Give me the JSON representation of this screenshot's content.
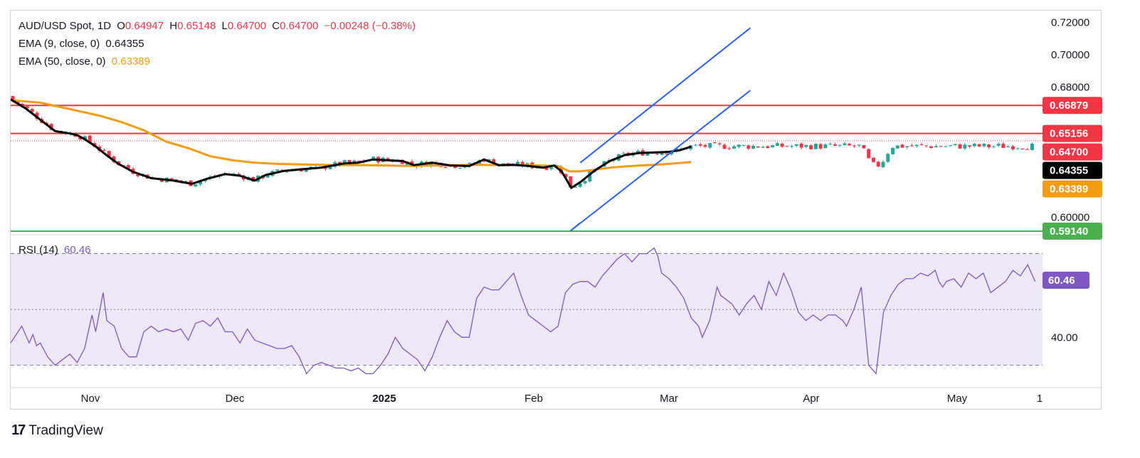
{
  "legend": {
    "symbol": "AUD/USD Spot, 1D",
    "open_label": "O",
    "open": "0.64947",
    "high_label": "H",
    "high": "0.65148",
    "low_label": "L",
    "low": "0.64700",
    "close_label": "C",
    "close": "0.64700",
    "change": "−0.00248 (−0.38%)",
    "ema9_label": "EMA (9, close, 0)",
    "ema9_value": "0.64355",
    "ema50_label": "EMA (50, close, 0)",
    "ema50_value": "0.63389",
    "rsi_label": "RSI (14)",
    "rsi_value": "60.46"
  },
  "colors": {
    "up": "#26a69a",
    "down": "#f23645",
    "ema9": "#000000",
    "ema50": "#f39c12",
    "channel": "#2962ff",
    "resistance": "#f23645",
    "support": "#4caf50",
    "rsi": "#7e57c2",
    "rsi_band": "#ede7f6"
  },
  "brand": "TradingView",
  "chart_data": [
    {
      "type": "candlestick",
      "ylim": [
        0.5905,
        0.7245
      ],
      "y_ticks": [
        "0.72000",
        "0.70000",
        "0.68000",
        "0.60000"
      ],
      "x_ticks": [
        "Nov",
        "Dec",
        "2025",
        "Feb",
        "Mar",
        "Apr",
        "May",
        "1"
      ],
      "horizontal_lines": [
        {
          "value": 0.66879,
          "label": "0.66879",
          "color": "#f23645"
        },
        {
          "value": 0.65156,
          "label": "0.65156",
          "color": "#f23645"
        },
        {
          "value": 0.5914,
          "label": "0.59140",
          "color": "#4caf50"
        }
      ],
      "price_tags": [
        {
          "value": 0.647,
          "label": "0.64700",
          "color": "#f23645"
        },
        {
          "value": 0.64355,
          "label": "0.64355",
          "color": "#000000"
        },
        {
          "value": 0.63389,
          "label": "0.63389",
          "color": "#f39c12"
        }
      ],
      "ema9": [
        [
          0,
          0.6725
        ],
        [
          20,
          0.667
        ],
        [
          40,
          0.66
        ],
        [
          60,
          0.653
        ],
        [
          80,
          0.6515
        ],
        [
          90,
          0.6505
        ],
        [
          100,
          0.648
        ],
        [
          115,
          0.6435
        ],
        [
          130,
          0.638
        ],
        [
          145,
          0.633
        ],
        [
          165,
          0.628
        ],
        [
          190,
          0.624
        ],
        [
          220,
          0.6225
        ],
        [
          245,
          0.6205
        ],
        [
          265,
          0.6235
        ],
        [
          290,
          0.6265
        ],
        [
          310,
          0.6255
        ],
        [
          330,
          0.6225
        ],
        [
          345,
          0.626
        ],
        [
          370,
          0.6285
        ],
        [
          395,
          0.6295
        ],
        [
          420,
          0.6305
        ],
        [
          450,
          0.633
        ],
        [
          470,
          0.6335
        ],
        [
          490,
          0.6355
        ],
        [
          510,
          0.635
        ],
        [
          530,
          0.6345
        ],
        [
          545,
          0.632
        ],
        [
          570,
          0.6335
        ],
        [
          595,
          0.6318
        ],
        [
          620,
          0.6315
        ],
        [
          640,
          0.6355
        ],
        [
          660,
          0.632
        ],
        [
          680,
          0.6322
        ],
        [
          700,
          0.6315
        ],
        [
          720,
          0.6305
        ],
        [
          735,
          0.6318
        ],
        [
          745,
          0.628
        ],
        [
          758,
          0.618
        ],
        [
          770,
          0.6215
        ],
        [
          790,
          0.6288
        ],
        [
          810,
          0.6345
        ],
        [
          830,
          0.6382
        ],
        [
          850,
          0.6395
        ],
        [
          870,
          0.6398
        ],
        [
          890,
          0.6402
        ],
        [
          905,
          0.6412
        ],
        [
          920,
          0.6435
        ]
      ],
      "ema50": [
        [
          0,
          0.672
        ],
        [
          40,
          0.6705
        ],
        [
          80,
          0.6665
        ],
        [
          120,
          0.6625
        ],
        [
          150,
          0.6585
        ],
        [
          180,
          0.6535
        ],
        [
          210,
          0.6465
        ],
        [
          240,
          0.6425
        ],
        [
          270,
          0.6375
        ],
        [
          300,
          0.635
        ],
        [
          330,
          0.6335
        ],
        [
          360,
          0.6328
        ],
        [
          390,
          0.6325
        ],
        [
          420,
          0.6322
        ],
        [
          450,
          0.632
        ],
        [
          480,
          0.632
        ],
        [
          510,
          0.6318
        ],
        [
          540,
          0.6315
        ],
        [
          570,
          0.6318
        ],
        [
          600,
          0.632
        ],
        [
          630,
          0.6322
        ],
        [
          660,
          0.632
        ],
        [
          690,
          0.632
        ],
        [
          720,
          0.6318
        ],
        [
          740,
          0.6315
        ],
        [
          755,
          0.6282
        ],
        [
          770,
          0.6282
        ],
        [
          790,
          0.6292
        ],
        [
          810,
          0.6305
        ],
        [
          830,
          0.6312
        ],
        [
          850,
          0.6318
        ],
        [
          870,
          0.6322
        ],
        [
          890,
          0.6328
        ],
        [
          910,
          0.6335
        ],
        [
          920,
          0.6339
        ]
      ],
      "channel": [
        {
          "name": "upper",
          "points": [
            [
              770,
              0.6335
            ],
            [
              1000,
              0.7165
            ]
          ]
        },
        {
          "name": "lower",
          "points": [
            [
              757,
              0.5916
            ],
            [
              1000,
              0.678
            ]
          ]
        },
        {
          "name": "inner",
          "points": [
            [
              757,
              0.5916
            ],
            [
              770,
              0.5965
            ]
          ]
        }
      ]
    },
    {
      "type": "line",
      "ylim": [
        22,
        76
      ],
      "y_ticks": [
        "40.00"
      ],
      "levels": [
        70,
        30,
        50
      ],
      "series": [
        {
          "values": [
            [
              0,
              38
            ],
            [
              10,
              42
            ],
            [
              15,
              44
            ],
            [
              25,
              38
            ],
            [
              30,
              41
            ],
            [
              35,
              37
            ],
            [
              40,
              38
            ],
            [
              50,
              33
            ],
            [
              60,
              30
            ],
            [
              70,
              32
            ],
            [
              80,
              34
            ],
            [
              90,
              31
            ],
            [
              100,
              36
            ],
            [
              110,
              48
            ],
            [
              115,
              42
            ],
            [
              125,
              56
            ],
            [
              130,
              46
            ],
            [
              140,
              44
            ],
            [
              150,
              36
            ],
            [
              160,
              33
            ],
            [
              170,
              33
            ],
            [
              180,
              42
            ],
            [
              190,
              44
            ],
            [
              200,
              42
            ],
            [
              210,
              43
            ],
            [
              220,
              42
            ],
            [
              230,
              43
            ],
            [
              240,
              39
            ],
            [
              250,
              45
            ],
            [
              260,
              46
            ],
            [
              270,
              44
            ],
            [
              280,
              47
            ],
            [
              290,
              42
            ],
            [
              300,
              42
            ],
            [
              310,
              38
            ],
            [
              320,
              43
            ],
            [
              330,
              39
            ],
            [
              340,
              38
            ],
            [
              350,
              37
            ],
            [
              360,
              36
            ],
            [
              370,
              36
            ],
            [
              380,
              37
            ],
            [
              390,
              33
            ],
            [
              400,
              27
            ],
            [
              410,
              30
            ],
            [
              420,
              31
            ],
            [
              430,
              30
            ],
            [
              440,
              29
            ],
            [
              450,
              29
            ],
            [
              460,
              28
            ],
            [
              470,
              29
            ],
            [
              480,
              27
            ],
            [
              490,
              27
            ],
            [
              500,
              30
            ],
            [
              510,
              34
            ],
            [
              520,
              40
            ],
            [
              530,
              36
            ],
            [
              540,
              34
            ],
            [
              550,
              32
            ],
            [
              560,
              28
            ],
            [
              570,
              33
            ],
            [
              580,
              40
            ],
            [
              590,
              46
            ],
            [
              600,
              42
            ],
            [
              610,
              40
            ],
            [
              620,
              40
            ],
            [
              630,
              54
            ],
            [
              640,
              58
            ],
            [
              650,
              57
            ],
            [
              660,
              57
            ],
            [
              670,
              60
            ],
            [
              680,
              63
            ],
            [
              690,
              55
            ],
            [
              700,
              48
            ],
            [
              710,
              46
            ],
            [
              720,
              44
            ],
            [
              730,
              42
            ],
            [
              740,
              44
            ],
            [
              750,
              56
            ],
            [
              760,
              59
            ],
            [
              770,
              60
            ],
            [
              780,
              60
            ],
            [
              790,
              58
            ],
            [
              800,
              62
            ],
            [
              810,
              65
            ],
            [
              820,
              68
            ],
            [
              830,
              70
            ],
            [
              840,
              67
            ],
            [
              850,
              70
            ],
            [
              860,
              70
            ],
            [
              870,
              72
            ],
            [
              875,
              69
            ],
            [
              880,
              63
            ],
            [
              890,
              61
            ],
            [
              900,
              58
            ],
            [
              910,
              54
            ],
            [
              920,
              47
            ],
            [
              930,
              44
            ],
            [
              935,
              40
            ],
            [
              945,
              46
            ],
            [
              955,
              58
            ],
            [
              960,
              55
            ],
            [
              975,
              52
            ],
            [
              985,
              48
            ],
            [
              995,
              52
            ],
            [
              1005,
              55
            ],
            [
              1015,
              50
            ],
            [
              1025,
              60
            ],
            [
              1035,
              55
            ],
            [
              1045,
              63
            ],
            [
              1055,
              57
            ],
            [
              1065,
              49
            ],
            [
              1075,
              46
            ],
            [
              1085,
              48
            ],
            [
              1095,
              46
            ],
            [
              1105,
              48
            ],
            [
              1115,
              48
            ],
            [
              1125,
              46
            ],
            [
              1130,
              44
            ],
            [
              1140,
              50
            ],
            [
              1150,
              58
            ],
            [
              1160,
              30
            ],
            [
              1170,
              27
            ],
            [
              1180,
              49
            ],
            [
              1190,
              55
            ],
            [
              1200,
              59
            ],
            [
              1210,
              61
            ],
            [
              1220,
              61
            ],
            [
              1230,
              63
            ],
            [
              1240,
              62
            ],
            [
              1250,
              64
            ],
            [
              1255,
              60
            ],
            [
              1260,
              58
            ],
            [
              1265,
              60
            ],
            [
              1275,
              61
            ],
            [
              1285,
              58
            ],
            [
              1295,
              63
            ],
            [
              1305,
              61
            ],
            [
              1315,
              63
            ],
            [
              1325,
              56
            ],
            [
              1335,
              58
            ],
            [
              1345,
              60
            ],
            [
              1355,
              64
            ],
            [
              1365,
              62
            ],
            [
              1375,
              66
            ],
            [
              1385,
              60
            ]
          ]
        }
      ]
    }
  ]
}
